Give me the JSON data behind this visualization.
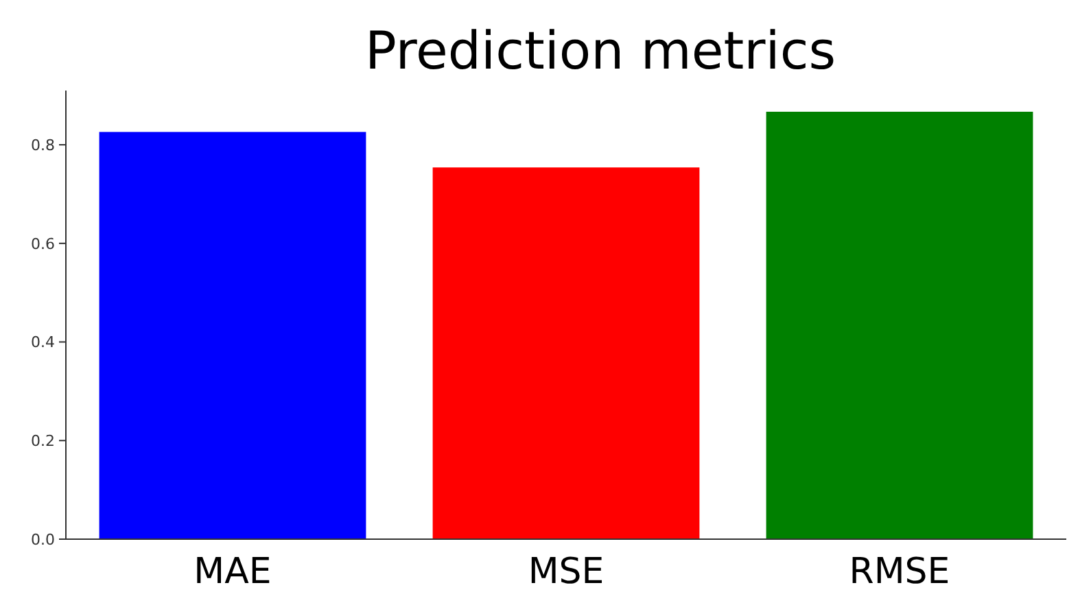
{
  "chart_data": {
    "type": "bar",
    "title": "Prediction metrics",
    "categories": [
      "MAE",
      "MSE",
      "RMSE"
    ],
    "values": [
      0.826,
      0.754,
      0.867
    ],
    "colors": [
      "#0000ff",
      "#ff0000",
      "#008000"
    ],
    "ylim": [
      0,
      0.91
    ],
    "yticks": [
      {
        "value": 0,
        "label": "0.0"
      },
      {
        "value": 0.2,
        "label": "0.2"
      },
      {
        "value": 0.4,
        "label": "0.4"
      },
      {
        "value": 0.6,
        "label": "0.6"
      },
      {
        "value": 0.8,
        "label": "0.8"
      }
    ]
  }
}
